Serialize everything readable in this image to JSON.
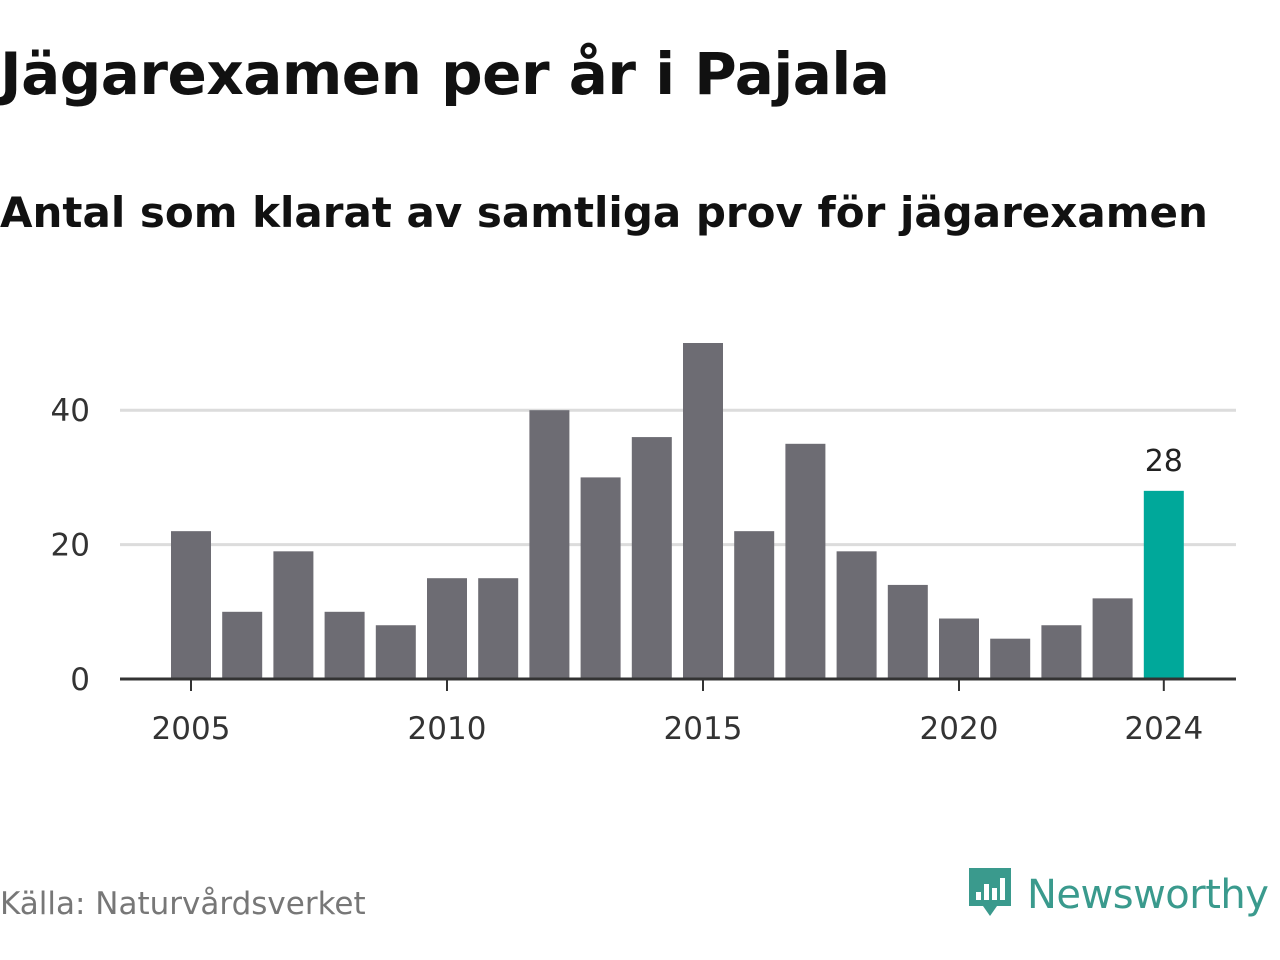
{
  "title": "Jägarexamen per år i Pajala",
  "subtitle": "Antal som klarat av samtliga prov för jägarexamen",
  "source": "Källa: Naturvårdsverket",
  "brand": "Newsworthy",
  "colors": {
    "bar": "#6d6c73",
    "highlight": "#00a89a",
    "grid": "#dcdcdc",
    "axis": "#333333",
    "brand": "#3a9a8d"
  },
  "chart_data": {
    "type": "bar",
    "x": [
      2005,
      2006,
      2007,
      2008,
      2009,
      2010,
      2011,
      2012,
      2013,
      2014,
      2015,
      2016,
      2017,
      2018,
      2019,
      2020,
      2021,
      2022,
      2023,
      2024
    ],
    "values": [
      22,
      10,
      19,
      10,
      8,
      15,
      15,
      40,
      30,
      36,
      50,
      22,
      35,
      19,
      14,
      9,
      6,
      8,
      12,
      28
    ],
    "xticks": [
      "2005",
      "2010",
      "2015",
      "2020",
      "2024"
    ],
    "yticks": [
      "0",
      "20",
      "40"
    ],
    "ylim": [
      0,
      50
    ],
    "grid": true,
    "highlight": {
      "x": 2024,
      "label": "28"
    }
  }
}
